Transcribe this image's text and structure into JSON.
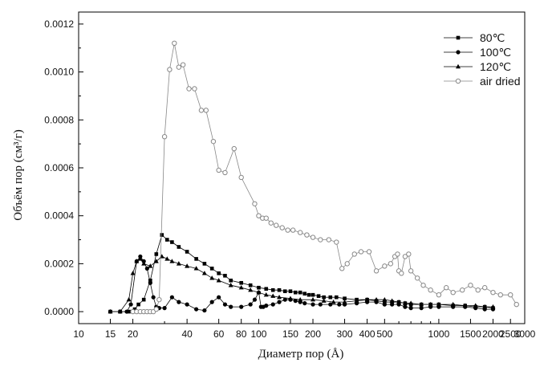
{
  "chart_data": {
    "type": "line",
    "xlabel": "Диаметр пор (Å)",
    "ylabel": "Объём пор (см³/г)",
    "x_scale": "log",
    "xlim": [
      10,
      3000
    ],
    "ylim": [
      -5e-05,
      0.00125
    ],
    "x_ticks": [
      10,
      15,
      20,
      30,
      40,
      60,
      80,
      100,
      150,
      200,
      300,
      400,
      500,
      600,
      700,
      800,
      900,
      1000,
      1500,
      2000,
      2500,
      3000
    ],
    "x_tick_labels": [
      "10",
      "15",
      "20",
      "",
      "40",
      "60",
      "80",
      "100",
      "150",
      "200",
      "300",
      "400",
      "500",
      "",
      "",
      "",
      "",
      "1000",
      "1500",
      "2000",
      "2500",
      "3000"
    ],
    "y_ticks": [
      0,
      0.0002,
      0.0004,
      0.0006,
      0.0008,
      0.001,
      0.0012
    ],
    "y_tick_labels": [
      "0.0000",
      "0.0002",
      "0.0004",
      "0.0006",
      "0.0008",
      "0.0010",
      "0.0012"
    ],
    "legend_position": "top-right",
    "grid": false,
    "series": [
      {
        "name": "80℃",
        "marker": "square",
        "color": "#000000",
        "points": [
          [
            15,
            0
          ],
          [
            17,
            0
          ],
          [
            19,
            0
          ],
          [
            20.5,
            1e-05
          ],
          [
            21.5,
            3e-05
          ],
          [
            23,
            5e-05
          ],
          [
            25,
            0.00013
          ],
          [
            27,
            0.00024
          ],
          [
            29,
            0.00032
          ],
          [
            31,
            0.0003
          ],
          [
            33,
            0.00029
          ],
          [
            36,
            0.00027
          ],
          [
            40,
            0.00025
          ],
          [
            45,
            0.00022
          ],
          [
            50,
            0.0002
          ],
          [
            55,
            0.00018
          ],
          [
            60,
            0.00016
          ],
          [
            65,
            0.00015
          ],
          [
            70,
            0.00013
          ],
          [
            80,
            0.00012
          ],
          [
            90,
            0.00011
          ],
          [
            100,
            0.0001
          ],
          [
            110,
            9.5e-05
          ],
          [
            120,
            9e-05
          ],
          [
            130,
            9e-05
          ],
          [
            140,
            8.5e-05
          ],
          [
            150,
            8.5e-05
          ],
          [
            160,
            8e-05
          ],
          [
            170,
            8e-05
          ],
          [
            180,
            7.5e-05
          ],
          [
            190,
            7e-05
          ],
          [
            200,
            7e-05
          ],
          [
            215,
            6.5e-05
          ],
          [
            230,
            6e-05
          ],
          [
            250,
            6e-05
          ],
          [
            270,
            6e-05
          ],
          [
            300,
            5.5e-05
          ],
          [
            350,
            5e-05
          ],
          [
            400,
            5e-05
          ],
          [
            450,
            4.5e-05
          ],
          [
            500,
            4e-05
          ],
          [
            550,
            4e-05
          ],
          [
            600,
            4e-05
          ],
          [
            650,
            3.5e-05
          ],
          [
            700,
            3e-05
          ],
          [
            800,
            3e-05
          ],
          [
            900,
            3e-05
          ],
          [
            1000,
            3e-05
          ],
          [
            1200,
            2.5e-05
          ],
          [
            1400,
            2.5e-05
          ],
          [
            1600,
            2e-05
          ],
          [
            1800,
            2e-05
          ],
          [
            2000,
            1.5e-05
          ]
        ]
      },
      {
        "name": "100℃",
        "marker": "circle",
        "color": "#000000",
        "points": [
          [
            15,
            0
          ],
          [
            17,
            0
          ],
          [
            18.5,
            0
          ],
          [
            19.5,
            3e-05
          ],
          [
            21,
            0.00021
          ],
          [
            22,
            0.00023
          ],
          [
            23,
            0.00021
          ],
          [
            24,
            0.00018
          ],
          [
            25,
            0.00012
          ],
          [
            26,
            6e-05
          ],
          [
            27,
            2e-05
          ],
          [
            28,
            1.5e-05
          ],
          [
            30,
            1.5e-05
          ],
          [
            33,
            6e-05
          ],
          [
            36,
            4e-05
          ],
          [
            40,
            3e-05
          ],
          [
            45,
            1e-05
          ],
          [
            50,
            5e-06
          ],
          [
            55,
            4e-05
          ],
          [
            60,
            6e-05
          ],
          [
            65,
            3e-05
          ],
          [
            70,
            2e-05
          ],
          [
            80,
            2e-05
          ],
          [
            90,
            3e-05
          ],
          [
            95,
            5e-05
          ],
          [
            100,
            8e-05
          ],
          [
            103,
            2e-05
          ],
          [
            106,
            2e-05
          ],
          [
            110,
            2.5e-05
          ],
          [
            120,
            3e-05
          ],
          [
            130,
            4e-05
          ],
          [
            140,
            5e-05
          ],
          [
            150,
            5e-05
          ],
          [
            160,
            4.5e-05
          ],
          [
            170,
            4e-05
          ],
          [
            180,
            3.5e-05
          ],
          [
            200,
            3e-05
          ],
          [
            220,
            3e-05
          ],
          [
            250,
            3e-05
          ],
          [
            280,
            3e-05
          ],
          [
            300,
            3e-05
          ],
          [
            350,
            3.5e-05
          ],
          [
            400,
            4e-05
          ],
          [
            450,
            4e-05
          ],
          [
            500,
            3e-05
          ],
          [
            550,
            3e-05
          ],
          [
            600,
            3e-05
          ],
          [
            650,
            2e-05
          ],
          [
            700,
            1.5e-05
          ],
          [
            800,
            1.5e-05
          ],
          [
            900,
            2e-05
          ],
          [
            1000,
            2e-05
          ],
          [
            1200,
            2e-05
          ],
          [
            1400,
            2e-05
          ],
          [
            1600,
            1.5e-05
          ],
          [
            1800,
            1e-05
          ],
          [
            2000,
            1e-05
          ]
        ]
      },
      {
        "name": "120℃",
        "marker": "triangle",
        "color": "#000000",
        "points": [
          [
            15,
            0
          ],
          [
            17,
            0
          ],
          [
            19,
            5e-05
          ],
          [
            20,
            0.00016
          ],
          [
            21,
            0.00021
          ],
          [
            22,
            0.00022
          ],
          [
            23,
            0.0002
          ],
          [
            25,
            0.00019
          ],
          [
            27,
            0.00021
          ],
          [
            29,
            0.00023
          ],
          [
            31,
            0.00022
          ],
          [
            33,
            0.00021
          ],
          [
            36,
            0.0002
          ],
          [
            40,
            0.00019
          ],
          [
            45,
            0.00018
          ],
          [
            50,
            0.00016
          ],
          [
            55,
            0.00014
          ],
          [
            60,
            0.00013
          ],
          [
            70,
            0.00011
          ],
          [
            80,
            0.0001
          ],
          [
            90,
            9e-05
          ],
          [
            100,
            8e-05
          ],
          [
            110,
            7e-05
          ],
          [
            120,
            6.5e-05
          ],
          [
            130,
            6e-05
          ],
          [
            150,
            5.5e-05
          ],
          [
            170,
            5e-05
          ],
          [
            200,
            5e-05
          ],
          [
            230,
            4.5e-05
          ],
          [
            260,
            4e-05
          ],
          [
            300,
            4e-05
          ],
          [
            350,
            4.5e-05
          ],
          [
            400,
            5e-05
          ],
          [
            450,
            5e-05
          ],
          [
            500,
            5e-05
          ],
          [
            550,
            4.5e-05
          ],
          [
            600,
            4e-05
          ],
          [
            650,
            3.5e-05
          ],
          [
            700,
            3.5e-05
          ],
          [
            800,
            3e-05
          ],
          [
            900,
            3e-05
          ],
          [
            1000,
            3e-05
          ],
          [
            1200,
            3e-05
          ],
          [
            1400,
            2.5e-05
          ],
          [
            1600,
            2.5e-05
          ],
          [
            1800,
            2e-05
          ],
          [
            2000,
            2e-05
          ]
        ]
      },
      {
        "name": "air dried",
        "marker": "open-circle",
        "color": "#888888",
        "points": [
          [
            20,
            0
          ],
          [
            21,
            0
          ],
          [
            22,
            0
          ],
          [
            23,
            0
          ],
          [
            24,
            0
          ],
          [
            25,
            0
          ],
          [
            26,
            0
          ],
          [
            27,
            1e-05
          ],
          [
            28,
            5e-05
          ],
          [
            30,
            0.00073
          ],
          [
            32,
            0.00101
          ],
          [
            34,
            0.00112
          ],
          [
            36,
            0.00102
          ],
          [
            38,
            0.00103
          ],
          [
            41,
            0.00093
          ],
          [
            44,
            0.00093
          ],
          [
            48,
            0.00084
          ],
          [
            51,
            0.00084
          ],
          [
            56,
            0.00071
          ],
          [
            60,
            0.00059
          ],
          [
            65,
            0.00058
          ],
          [
            73,
            0.00068
          ],
          [
            80,
            0.00056
          ],
          [
            95,
            0.00045
          ],
          [
            100,
            0.0004
          ],
          [
            105,
            0.00039
          ],
          [
            110,
            0.00039
          ],
          [
            117,
            0.00037
          ],
          [
            125,
            0.00036
          ],
          [
            135,
            0.00035
          ],
          [
            145,
            0.00034
          ],
          [
            155,
            0.00034
          ],
          [
            170,
            0.00033
          ],
          [
            185,
            0.00032
          ],
          [
            200,
            0.00031
          ],
          [
            220,
            0.0003
          ],
          [
            245,
            0.0003
          ],
          [
            270,
            0.00029
          ],
          [
            290,
            0.00018
          ],
          [
            310,
            0.0002
          ],
          [
            340,
            0.00024
          ],
          [
            370,
            0.00025
          ],
          [
            410,
            0.00025
          ],
          [
            450,
            0.00017
          ],
          [
            500,
            0.00019
          ],
          [
            540,
            0.0002
          ],
          [
            570,
            0.00023
          ],
          [
            590,
            0.00024
          ],
          [
            600,
            0.00017
          ],
          [
            620,
            0.00016
          ],
          [
            650,
            0.00023
          ],
          [
            680,
            0.00024
          ],
          [
            700,
            0.00017
          ],
          [
            760,
            0.00014
          ],
          [
            820,
            0.00011
          ],
          [
            900,
            9e-05
          ],
          [
            1000,
            7e-05
          ],
          [
            1100,
            0.0001
          ],
          [
            1200,
            8e-05
          ],
          [
            1350,
            9e-05
          ],
          [
            1500,
            0.00011
          ],
          [
            1650,
            9e-05
          ],
          [
            1800,
            0.0001
          ],
          [
            2000,
            8e-05
          ],
          [
            2200,
            7e-05
          ],
          [
            2500,
            7e-05
          ],
          [
            2700,
            3e-05
          ]
        ]
      }
    ]
  }
}
